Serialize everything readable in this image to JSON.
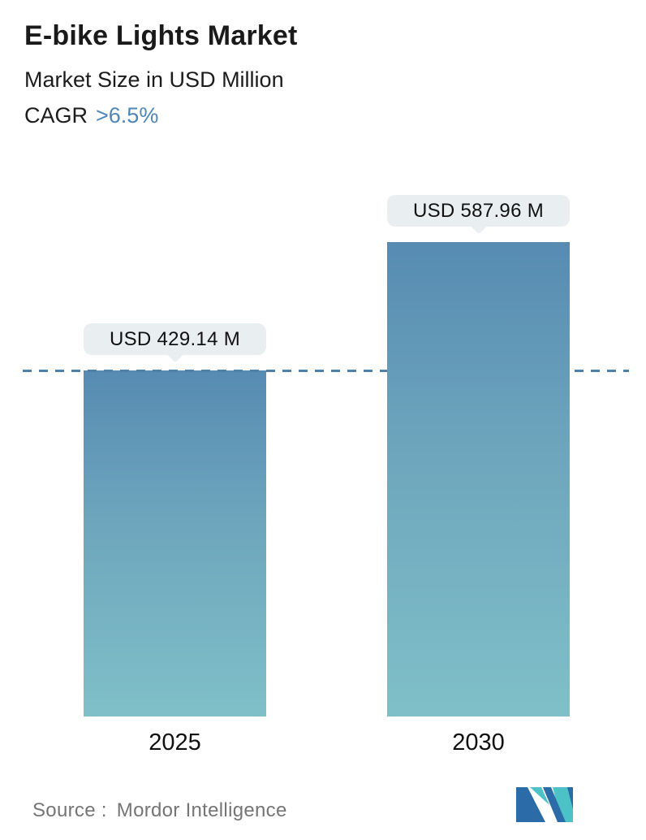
{
  "header": {
    "title": "E-bike Lights Market",
    "subtitle": "Market Size in USD Million",
    "cagr_label": "CAGR",
    "cagr_value": ">6.5%"
  },
  "chart_data": {
    "type": "bar",
    "categories": [
      "2025",
      "2030"
    ],
    "values": [
      429.14,
      587.96
    ],
    "value_labels": [
      "USD 429.14 M",
      "USD 587.96 M"
    ],
    "title": "E-bike Lights Market",
    "subtitle": "Market Size in USD Million",
    "cagr": ">6.5%",
    "xlabel": "",
    "ylabel": "Market Size in USD Million",
    "ylim": [
      0,
      640
    ],
    "grid": false,
    "legend": "none",
    "reference_line": {
      "value": 429.14,
      "style": "dashed",
      "color": "#5080a8"
    },
    "bar_gradient_top": "#578bb2",
    "bar_gradient_bottom": "#7fc0c8",
    "tooltip_bg": "#e9eef0"
  },
  "footer": {
    "source_label": "Source :",
    "source_name": "Mordor Intelligence",
    "logo": "mordor-intelligence-logo"
  },
  "colors": {
    "accent_blue": "#4d86bb",
    "dash_line": "#5080a8",
    "logo_blue": "#2b6ba8",
    "logo_teal": "#4cc2c7",
    "text_dark": "#1a1a1a",
    "text_gray": "#757575"
  }
}
